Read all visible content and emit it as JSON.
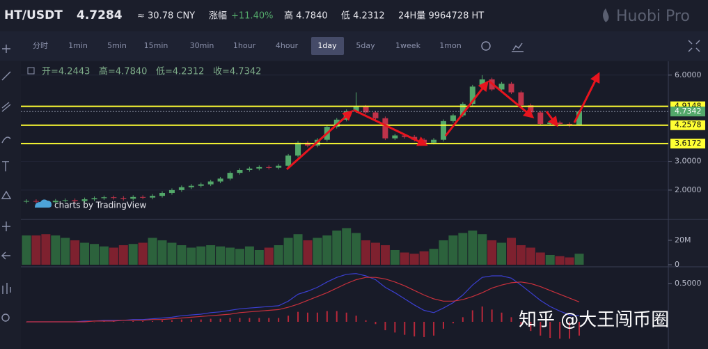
{
  "header": {
    "pair": "HT/USDT",
    "price": "4.7284",
    "cny": "≈ 30.78 CNY",
    "change_label": "涨幅",
    "change": "+11.40%",
    "high": "高 4.7840",
    "low": "低 4.2312",
    "volume": "24H量 9964728 HT",
    "logo": "Huobi Pro"
  },
  "toolbar": {
    "intervals": [
      "分时",
      "1min",
      "5min",
      "15min",
      "30min",
      "1hour",
      "4hour",
      "1day",
      "5day",
      "1week",
      "1mon"
    ],
    "active": "1day"
  },
  "watermark": "知乎 @大王闯币圈",
  "credit": "charts by TradingView",
  "chart_data": {
    "type": "candlestick",
    "ohlc_legend": [
      "开=4.2443",
      "高=4.7840",
      "低=4.2312",
      "收=4.7342"
    ],
    "up_color": "#53a86a",
    "down_color": "#c0334a",
    "ylim": [
      0.98,
      6.48
    ],
    "yticks": [
      {
        "value": 2,
        "label": "2.0000"
      },
      {
        "value": 3,
        "label": "3.0000"
      },
      {
        "value": 6,
        "label": "6.0000"
      }
    ],
    "open": [
      1.6,
      1.62,
      1.6,
      1.58,
      1.63,
      1.65,
      1.62,
      1.68,
      1.72,
      1.75,
      1.73,
      1.7,
      1.76,
      1.74,
      1.8,
      1.9,
      2.0,
      2.1,
      2.15,
      2.2,
      2.3,
      2.4,
      2.6,
      2.7,
      2.75,
      2.8,
      2.78,
      2.85,
      3.2,
      3.65,
      3.55,
      3.75,
      4.2,
      4.45,
      4.75,
      4.9,
      4.7,
      4.5,
      3.8,
      3.9,
      3.85,
      3.75,
      3.65,
      3.75,
      4.4,
      4.6,
      5.0,
      5.6,
      5.85,
      5.5,
      5.7,
      5.4,
      4.95,
      4.7,
      4.3,
      4.35,
      4.3,
      4.2443
    ],
    "high": [
      1.68,
      1.68,
      1.66,
      1.69,
      1.71,
      1.71,
      1.74,
      1.78,
      1.81,
      1.81,
      1.79,
      1.82,
      1.82,
      1.86,
      1.96,
      2.06,
      2.16,
      2.21,
      2.26,
      2.36,
      2.46,
      2.66,
      2.76,
      2.81,
      2.86,
      2.86,
      2.91,
      3.26,
      3.71,
      3.71,
      3.81,
      4.26,
      4.51,
      4.81,
      5.4,
      4.96,
      4.76,
      4.56,
      3.96,
      3.96,
      3.91,
      3.81,
      3.81,
      4.46,
      4.66,
      5.06,
      5.66,
      6.0,
      5.91,
      5.76,
      5.76,
      5.46,
      5.01,
      4.76,
      4.41,
      4.41,
      4.36,
      4.784
    ],
    "low": [
      1.54,
      1.54,
      1.52,
      1.52,
      1.57,
      1.56,
      1.56,
      1.62,
      1.66,
      1.67,
      1.64,
      1.64,
      1.68,
      1.68,
      1.74,
      1.84,
      1.94,
      2.04,
      2.09,
      2.14,
      2.24,
      2.34,
      2.54,
      2.64,
      2.69,
      2.72,
      2.72,
      2.79,
      3.14,
      3.49,
      3.49,
      3.69,
      4.14,
      4.39,
      4.69,
      4.64,
      4.44,
      3.74,
      3.74,
      3.79,
      3.69,
      3.59,
      3.59,
      3.69,
      4.34,
      4.54,
      4.94,
      5.54,
      5.44,
      5.44,
      5.34,
      4.89,
      4.64,
      4.24,
      4.24,
      4.24,
      4.19,
      4.2312
    ],
    "close": [
      1.62,
      1.6,
      1.58,
      1.63,
      1.65,
      1.62,
      1.68,
      1.72,
      1.75,
      1.73,
      1.7,
      1.76,
      1.74,
      1.8,
      1.9,
      2.0,
      2.1,
      2.15,
      2.2,
      2.3,
      2.4,
      2.6,
      2.7,
      2.75,
      2.8,
      2.78,
      2.85,
      3.2,
      3.65,
      3.55,
      3.75,
      4.2,
      4.45,
      4.75,
      4.9,
      4.7,
      4.5,
      3.8,
      3.9,
      3.85,
      3.75,
      3.65,
      3.75,
      4.4,
      4.6,
      5.0,
      5.6,
      5.85,
      5.5,
      5.7,
      5.4,
      4.95,
      4.7,
      4.3,
      4.35,
      4.3,
      4.25,
      4.7342
    ],
    "price_lines": [
      {
        "value": 4.9148,
        "color": "#ffff33"
      },
      {
        "value": 4.7342,
        "color": "#53a86a"
      },
      {
        "value": 4.2578,
        "color": "#ffff33"
      },
      {
        "value": 3.6172,
        "color": "#ffff33"
      }
    ],
    "volume": {
      "ylim": [
        -1.7,
        37.1
      ],
      "yticks": [
        0,
        {
          "value": 20,
          "label": "20M"
        }
      ],
      "values": [
        24,
        24,
        25,
        24,
        22,
        20,
        18,
        17,
        15,
        14,
        16,
        17,
        18,
        22,
        20,
        18,
        16,
        14,
        15,
        16,
        15,
        14,
        13,
        15,
        12,
        14,
        16,
        22,
        25,
        20,
        22,
        24,
        28,
        30,
        26,
        20,
        18,
        16,
        12,
        10,
        9,
        11,
        13,
        20,
        24,
        26,
        28,
        25,
        20,
        18,
        22,
        16,
        14,
        10,
        8,
        7,
        6,
        9
      ]
    },
    "macd": {
      "ylim": [
        -0.355,
        0.718
      ],
      "yticks": [
        {
          "value": 0.5,
          "label": "0.5000"
        }
      ],
      "dif": {
        "color": "#3b3fd0",
        "values": [
          0,
          0,
          0,
          0,
          0,
          0,
          0.01,
          0.01,
          0.02,
          0.02,
          0.02,
          0.03,
          0.03,
          0.04,
          0.05,
          0.06,
          0.08,
          0.09,
          0.1,
          0.12,
          0.13,
          0.15,
          0.17,
          0.18,
          0.19,
          0.2,
          0.21,
          0.27,
          0.36,
          0.4,
          0.45,
          0.52,
          0.58,
          0.62,
          0.63,
          0.6,
          0.55,
          0.45,
          0.38,
          0.3,
          0.22,
          0.15,
          0.12,
          0.18,
          0.25,
          0.35,
          0.48,
          0.58,
          0.6,
          0.6,
          0.57,
          0.48,
          0.38,
          0.28,
          0.2,
          0.14,
          0.09,
          0.08
        ]
      },
      "dea": {
        "color": "#c8303c",
        "values": [
          0,
          0,
          0,
          0,
          0,
          0,
          0,
          0.01,
          0.01,
          0.01,
          0.02,
          0.02,
          0.02,
          0.03,
          0.03,
          0.04,
          0.05,
          0.06,
          0.07,
          0.08,
          0.09,
          0.1,
          0.12,
          0.13,
          0.14,
          0.15,
          0.16,
          0.19,
          0.23,
          0.28,
          0.33,
          0.38,
          0.44,
          0.5,
          0.55,
          0.58,
          0.58,
          0.56,
          0.52,
          0.47,
          0.41,
          0.35,
          0.3,
          0.27,
          0.27,
          0.29,
          0.33,
          0.38,
          0.44,
          0.48,
          0.51,
          0.52,
          0.5,
          0.46,
          0.41,
          0.36,
          0.31,
          0.26
        ]
      },
      "hist": {
        "color": "#b8283a",
        "values": [
          0,
          0,
          0,
          0,
          0,
          0,
          0.01,
          0,
          0.01,
          0.01,
          0,
          0.01,
          0.01,
          0.01,
          0.02,
          0.02,
          0.03,
          0.03,
          0.03,
          0.04,
          0.04,
          0.05,
          0.05,
          0.05,
          0.05,
          0.05,
          0.05,
          0.08,
          0.13,
          0.12,
          0.12,
          0.14,
          0.14,
          0.12,
          0.08,
          0.02,
          -0.03,
          -0.11,
          -0.14,
          -0.17,
          -0.19,
          -0.2,
          -0.18,
          -0.09,
          -0.02,
          0.06,
          0.15,
          0.2,
          0.16,
          0.12,
          0.06,
          -0.04,
          -0.12,
          -0.18,
          -0.21,
          -0.22,
          -0.22,
          -0.18
        ]
      }
    }
  }
}
